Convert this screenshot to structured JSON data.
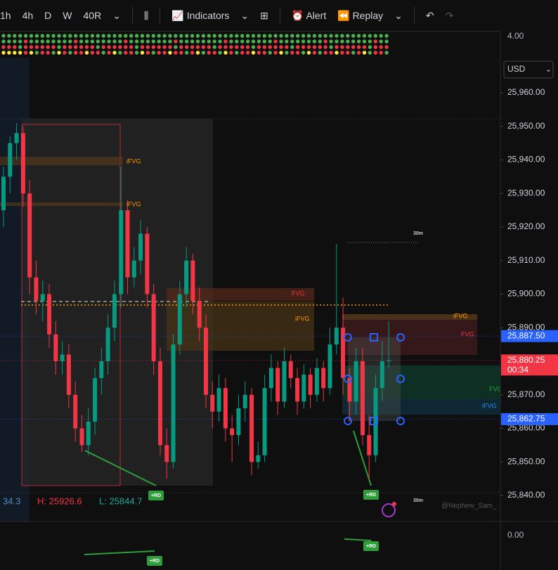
{
  "toolbar": {
    "intervals": [
      "1h",
      "4h",
      "D",
      "W",
      "40R"
    ],
    "indicators": "Indicators",
    "alert": "Alert",
    "replay": "Replay"
  },
  "currency": "USD",
  "price_axis": {
    "top_label": "4.00",
    "ticks": [
      {
        "value": 25960,
        "label": "25,960.00"
      },
      {
        "value": 25950,
        "label": "25,950.00"
      },
      {
        "value": 25940,
        "label": "25,940.00"
      },
      {
        "value": 25930,
        "label": "25,930.00"
      },
      {
        "value": 25920,
        "label": "25,920.00"
      },
      {
        "value": 25910,
        "label": "25,910.00"
      },
      {
        "value": 25900,
        "label": "25,900.00"
      },
      {
        "value": 25890,
        "label": "25,890.00"
      },
      {
        "value": 25870,
        "label": "25,870.00"
      },
      {
        "value": 25860,
        "label": "25,860.00"
      },
      {
        "value": 25850,
        "label": "25,850.00"
      },
      {
        "value": 25840,
        "label": "25,840.00"
      }
    ]
  },
  "price_tags": [
    {
      "value": 25887.5,
      "label": "25,887.50",
      "color": "#2962ff"
    },
    {
      "value": 25880.25,
      "label": "25,880.25",
      "sub": "00:34",
      "color": "#f23645"
    },
    {
      "value": 25862.75,
      "label": "25,862.75",
      "color": "#2962ff"
    }
  ],
  "candles": [
    [
      25925,
      25938,
      25920,
      25935
    ],
    [
      25935,
      25947,
      25930,
      25945
    ],
    [
      25945,
      25951,
      25940,
      25948
    ],
    [
      25948,
      25950,
      25926,
      25930
    ],
    [
      25930,
      25934,
      25900,
      25905
    ],
    [
      25905,
      25910,
      25894,
      25898
    ],
    [
      25898,
      25904,
      25892,
      25900
    ],
    [
      25900,
      25903,
      25884,
      25888
    ],
    [
      25888,
      25892,
      25876,
      25880
    ],
    [
      25880,
      25886,
      25876,
      25882
    ],
    [
      25882,
      25885,
      25866,
      25870
    ],
    [
      25870,
      25874,
      25856,
      25860
    ],
    [
      25860,
      25864,
      25853,
      25855
    ],
    [
      25855,
      25866,
      25852,
      25862
    ],
    [
      25862,
      25878,
      25858,
      25875
    ],
    [
      25875,
      25884,
      25870,
      25880
    ],
    [
      25880,
      25894,
      25876,
      25890
    ],
    [
      25890,
      25904,
      25886,
      25900
    ],
    [
      25900,
      25938,
      25896,
      25925
    ],
    [
      25925,
      25928,
      25900,
      25905
    ],
    [
      25905,
      25914,
      25902,
      25910
    ],
    [
      25910,
      25922,
      25906,
      25918
    ],
    [
      25918,
      25920,
      25896,
      25900
    ],
    [
      25900,
      25903,
      25876,
      25880
    ],
    [
      25880,
      25884,
      25852,
      25855
    ],
    [
      25855,
      25860,
      25845,
      25850
    ],
    [
      25850,
      25888,
      25848,
      25885
    ],
    [
      25885,
      25904,
      25882,
      25900
    ],
    [
      25900,
      25914,
      25896,
      25910
    ],
    [
      25910,
      25912,
      25894,
      25898
    ],
    [
      25898,
      25902,
      25886,
      25890
    ],
    [
      25890,
      25894,
      25866,
      25870
    ],
    [
      25870,
      25874,
      25860,
      25865
    ],
    [
      25865,
      25876,
      25862,
      25872
    ],
    [
      25872,
      25875,
      25856,
      25860
    ],
    [
      25860,
      25864,
      25850,
      25858
    ],
    [
      25858,
      25870,
      25855,
      25866
    ],
    [
      25866,
      25874,
      25862,
      25870
    ],
    [
      25870,
      25872,
      25846,
      25850
    ],
    [
      25850,
      25856,
      25848,
      25852
    ],
    [
      25852,
      25876,
      25850,
      25872
    ],
    [
      25872,
      25882,
      25868,
      25878
    ],
    [
      25878,
      25880,
      25864,
      25868
    ],
    [
      25868,
      25884,
      25866,
      25880
    ],
    [
      25880,
      25882,
      25872,
      25875
    ],
    [
      25875,
      25878,
      25864,
      25868
    ],
    [
      25868,
      25879,
      25866,
      25876
    ],
    [
      25876,
      25878,
      25866,
      25870
    ],
    [
      25870,
      25881,
      25868,
      25878
    ],
    [
      25878,
      25880,
      25868,
      25872
    ],
    [
      25872,
      25890,
      25870,
      25885
    ],
    [
      25885,
      25915,
      25882,
      25890
    ],
    [
      25890,
      25899,
      25870,
      25875
    ],
    [
      25875,
      25878,
      25862,
      25868
    ],
    [
      25868,
      25884,
      25864,
      25880
    ],
    [
      25880,
      25884,
      25855,
      25858
    ],
    [
      25858,
      25864,
      25845,
      25852
    ],
    [
      25852,
      25876,
      25850,
      25872
    ],
    [
      25872,
      25886,
      25868,
      25880
    ],
    [
      25880,
      25892,
      25878,
      25880.25
    ]
  ],
  "stats": [
    "34.3",
    "H: 25926.6",
    "L: 25844.7"
  ],
  "annotations": [
    "iFVG",
    "iFVG",
    "FVG",
    "iFVG",
    "iFVG",
    "FVG",
    "FVG",
    "iFVG",
    "30m",
    "30m",
    "+RD",
    "+RD",
    "+RD",
    "+RD"
  ],
  "oscillator_label": "0.00",
  "watermark": "@Nephew_Sam_"
}
